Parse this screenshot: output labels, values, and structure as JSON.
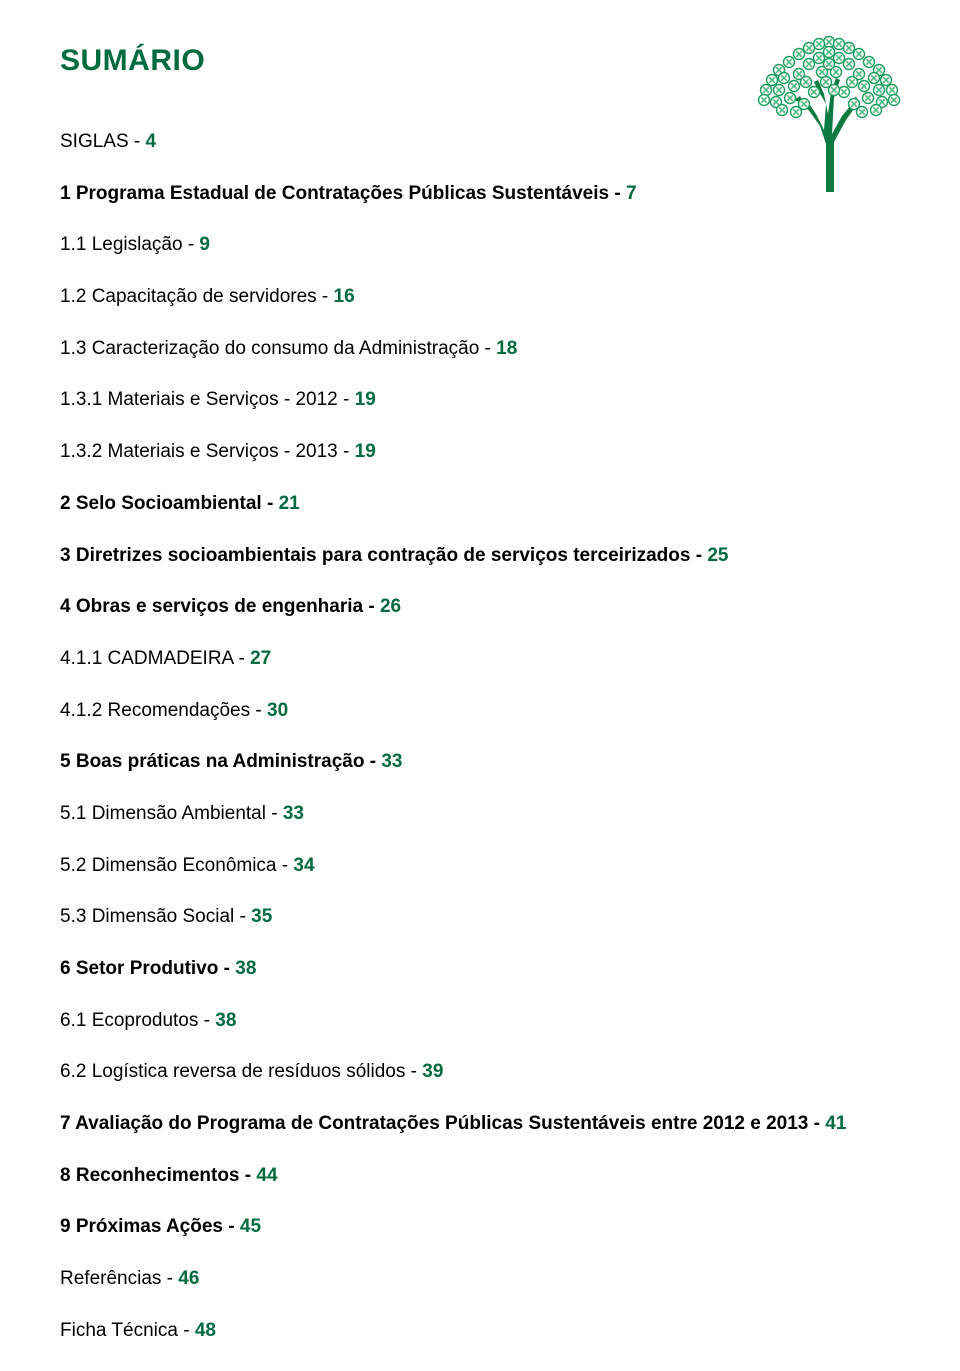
{
  "title": "SUMÁRIO",
  "colors": {
    "accent": "#006b3f",
    "text": "#000000",
    "tree_foliage": "#0c8a4d",
    "tree_fruit_border": "#1a9e5c",
    "tree_fruit_inner": "#4dba7e",
    "tree_trunk": "#0a7a42"
  },
  "toc": [
    {
      "label": "SIGLAS",
      "page": "4",
      "bold": false,
      "indent": 0
    },
    {
      "label": "1 Programa Estadual de Contratações Públicas Sustentáveis",
      "page": "7",
      "bold": true,
      "indent": 0
    },
    {
      "label": "1.1 Legislação",
      "page": "9",
      "bold": false,
      "indent": 0
    },
    {
      "label": "1.2 Capacitação de servidores",
      "page": "16",
      "bold": false,
      "indent": 0
    },
    {
      "label": "1.3 Caracterização do consumo da Administração",
      "page": "18",
      "bold": false,
      "indent": 0
    },
    {
      "label": "1.3.1 Materiais e Serviços - 2012",
      "page": "19",
      "bold": false,
      "indent": 0
    },
    {
      "label": "1.3.2 Materiais e Serviços - 2013",
      "page": "19",
      "bold": false,
      "indent": 0
    },
    {
      "label": "2 Selo Socioambiental",
      "page": "21",
      "bold": true,
      "indent": 0
    },
    {
      "label": "3 Diretrizes socioambientais para contração de serviços terceirizados",
      "page": "25",
      "bold": true,
      "indent": 0
    },
    {
      "label": "4 Obras e serviços de engenharia",
      "page": "26",
      "bold": true,
      "indent": 0
    },
    {
      "label": "4.1.1 CADMADEIRA",
      "page": "27",
      "bold": false,
      "indent": 0
    },
    {
      "label": "4.1.2 Recomendações",
      "page": "30",
      "bold": false,
      "indent": 0
    },
    {
      "label": "5 Boas práticas na Administração",
      "page": "33",
      "bold": true,
      "indent": 0
    },
    {
      "label": "5.1 Dimensão Ambiental",
      "page": "33",
      "bold": false,
      "indent": 0
    },
    {
      "label": "5.2 Dimensão Econômica",
      "page": "34",
      "bold": false,
      "indent": 0
    },
    {
      "label": "5.3 Dimensão Social",
      "page": "35",
      "bold": false,
      "indent": 0
    },
    {
      "label": "6 Setor Produtivo",
      "page": "38",
      "bold": true,
      "indent": 0
    },
    {
      "label": "6.1 Ecoprodutos",
      "page": "38",
      "bold": false,
      "indent": 0
    },
    {
      "label": "6.2 Logística reversa de resíduos sólidos",
      "page": "39",
      "bold": false,
      "indent": 0
    },
    {
      "label": "7 Avaliação do Programa de Contratações Públicas Sustentáveis entre 2012 e 2013",
      "page": "41",
      "bold": true,
      "indent": 0
    },
    {
      "label": "8 Reconhecimentos",
      "page": "44",
      "bold": true,
      "indent": 0
    },
    {
      "label": "9 Próximas Ações",
      "page": "45",
      "bold": true,
      "indent": 0
    },
    {
      "label": "Referências",
      "page": "46",
      "bold": false,
      "indent": 0
    },
    {
      "label": "Ficha Técnica",
      "page": "48",
      "bold": false,
      "indent": 0
    }
  ]
}
